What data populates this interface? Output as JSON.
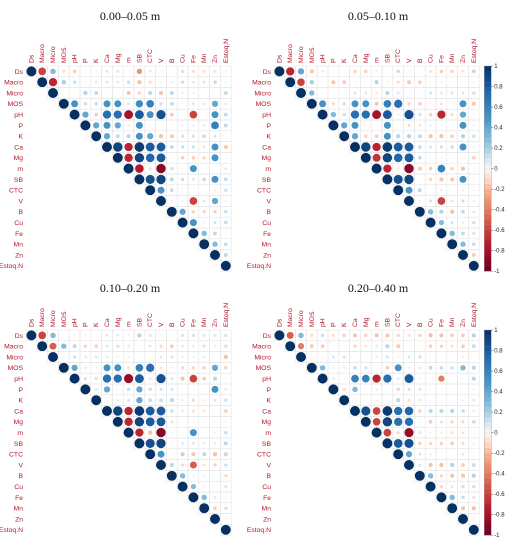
{
  "figure": {
    "variables": [
      "Ds",
      "Macro",
      "Micro",
      "MOS",
      "pH",
      "P",
      "K",
      "Ca",
      "Mg",
      "m",
      "SB",
      "CTC",
      "V",
      "B",
      "Cu",
      "Fe",
      "Mn",
      "Zn",
      "Estoq.N"
    ],
    "colorbar_ticks": [
      "1",
      "0.8",
      "0.6",
      "0.4",
      "0.2",
      "0",
      "-0.2",
      "-0.4",
      "-0.6",
      "-0.8",
      "-1"
    ],
    "colors": {
      "positive": "#053061",
      "neutral": "#f7f7f7",
      "negative": "#67001f",
      "label": "#b2182b"
    }
  },
  "chart_data": [
    {
      "type": "heatmap",
      "title": "0.00–0.05 m",
      "upper_triangle_only": true,
      "value_range": [
        -1,
        1
      ],
      "correlations": {
        "Ds-Macro": -0.6,
        "Ds-Micro": 0.3,
        "Ds-SB": -0.3,
        "Macro-Micro": -0.7,
        "Macro-MOS": 0.2,
        "MOS-pH": 0.5,
        "MOS-Ca": 0.5,
        "MOS-Mg": 0.5,
        "MOS-SB": 0.55,
        "MOS-CTC": 0.6,
        "MOS-Zn": 0.4,
        "pH-P": 0.4,
        "pH-Ca": 0.7,
        "pH-Mg": 0.7,
        "pH-m": -0.8,
        "pH-SB": 0.8,
        "pH-CTC": 0.5,
        "pH-V": 0.85,
        "pH-Fe": -0.6,
        "pH-Zn": 0.5,
        "P-K": 0.4,
        "P-Ca": 0.5,
        "P-Mg": 0.4,
        "P-SB": 0.5,
        "P-Zn": 0.6,
        "K-Ca": 0.4,
        "K-SB": 0.5,
        "K-CTC": 0.4,
        "Ca-Mg": 0.9,
        "Ca-m": -0.7,
        "Ca-SB": 0.95,
        "Ca-CTC": 0.8,
        "Ca-V": 0.8,
        "Ca-Zn": 0.5,
        "Mg-m": -0.7,
        "Mg-SB": 0.9,
        "Mg-CTC": 0.75,
        "Mg-V": 0.8,
        "Mg-Zn": 0.5,
        "m-SB": -0.75,
        "m-V": -0.9,
        "m-Fe": 0.5,
        "SB-CTC": 0.85,
        "SB-V": 0.9,
        "SB-Zn": 0.5,
        "CTC-V": 0.5,
        "V-Fe": -0.6,
        "V-Zn": 0.4,
        "B-Cu": 0.4,
        "Cu-Fe": 0.5,
        "Fe-Mn": 0.3,
        "Mn-Zn": 0.3
      }
    },
    {
      "type": "heatmap",
      "title": "0.05–0.10 m",
      "upper_triangle_only": true,
      "value_range": [
        -1,
        1
      ],
      "correlations": {
        "Ds-Macro": -0.7,
        "Ds-Micro": 0.4,
        "Macro-Micro": -0.6,
        "Macro-MOS": 0.2,
        "Micro-MOS": 0.3,
        "MOS-pH": 0.5,
        "MOS-Ca": 0.5,
        "MOS-Mg": 0.5,
        "MOS-SB": 0.6,
        "MOS-CTC": 0.7,
        "MOS-Zn": 0.5,
        "pH-P": 0.3,
        "pH-Ca": 0.7,
        "pH-Mg": 0.7,
        "pH-m": -0.8,
        "pH-SB": 0.8,
        "pH-V": 0.85,
        "pH-Fe": -0.7,
        "pH-Zn": 0.4,
        "P-K": 0.4,
        "P-Ca": 0.5,
        "P-SB": 0.5,
        "P-Zn": 0.5,
        "K-Ca": 0.4,
        "K-SB": 0.5,
        "Ca-Mg": 0.9,
        "Ca-m": -0.7,
        "Ca-SB": 0.95,
        "Ca-CTC": 0.8,
        "Ca-V": 0.8,
        "Ca-Zn": 0.5,
        "Mg-m": -0.65,
        "Mg-SB": 0.9,
        "Mg-CTC": 0.75,
        "Mg-V": 0.8,
        "m-SB": -0.7,
        "m-V": -0.9,
        "m-Fe": 0.6,
        "SB-CTC": 0.85,
        "SB-V": 0.9,
        "SB-Zn": 0.5,
        "CTC-V": 0.5,
        "V-Fe": -0.6,
        "B-Cu": 0.3,
        "Cu-Fe": 0.3,
        "Fe-Mn": 0.3,
        "Mn-Zn": 0.3
      }
    },
    {
      "type": "heatmap",
      "title": "0.10–0.20 m",
      "upper_triangle_only": true,
      "value_range": [
        -1,
        1
      ],
      "correlations": {
        "Ds-Macro": -0.6,
        "Ds-Micro": 0.3,
        "Macro-Micro": -0.5,
        "Macro-MOS": 0.3,
        "MOS-pH": 0.4,
        "MOS-Ca": 0.5,
        "MOS-Mg": 0.5,
        "MOS-SB": 0.6,
        "MOS-CTC": 0.7,
        "MOS-Zn": 0.4,
        "pH-Ca": 0.7,
        "pH-Mg": 0.7,
        "pH-m": -0.85,
        "pH-SB": 0.8,
        "pH-V": 0.85,
        "pH-Fe": -0.6,
        "P-Ca": 0.4,
        "P-SB": 0.4,
        "P-Zn": 0.5,
        "K-SB": 0.4,
        "Ca-Mg": 0.9,
        "Ca-m": -0.7,
        "Ca-SB": 0.95,
        "Ca-CTC": 0.8,
        "Ca-V": 0.8,
        "Mg-m": -0.7,
        "Mg-SB": 0.9,
        "Mg-CTC": 0.8,
        "Mg-V": 0.8,
        "m-SB": -0.7,
        "m-V": -0.9,
        "m-Fe": 0.5,
        "SB-CTC": 0.85,
        "SB-V": 0.9,
        "CTC-V": 0.5,
        "V-Fe": -0.5,
        "B-Cu": 0.3,
        "Cu-Fe": 0.3,
        "Fe-Mn": 0.3
      }
    },
    {
      "type": "heatmap",
      "title": "0.20–0.40 m",
      "upper_triangle_only": true,
      "value_range": [
        -1,
        1
      ],
      "correlations": {
        "Ds-Macro": -0.5,
        "Ds-Micro": 0.3,
        "Macro-Micro": -0.4,
        "MOS-pH": 0.3,
        "MOS-CTC": 0.5,
        "MOS-Zn": 0.3,
        "pH-Ca": 0.6,
        "pH-Mg": 0.6,
        "pH-m": -0.7,
        "pH-SB": 0.7,
        "pH-V": 0.8,
        "pH-Fe": -0.4,
        "P-Ca": 0.3,
        "Ca-Mg": 0.85,
        "Ca-m": -0.6,
        "Ca-SB": 0.95,
        "Ca-CTC": 0.7,
        "Ca-V": 0.75,
        "Mg-m": -0.6,
        "Mg-SB": 0.9,
        "Mg-CTC": 0.7,
        "Mg-V": 0.7,
        "m-SB": -0.6,
        "m-V": -0.85,
        "SB-CTC": 0.8,
        "SB-V": 0.85,
        "CTC-V": 0.4,
        "B-Cu": 0.3,
        "Fe-Mn": 0.3
      }
    }
  ]
}
